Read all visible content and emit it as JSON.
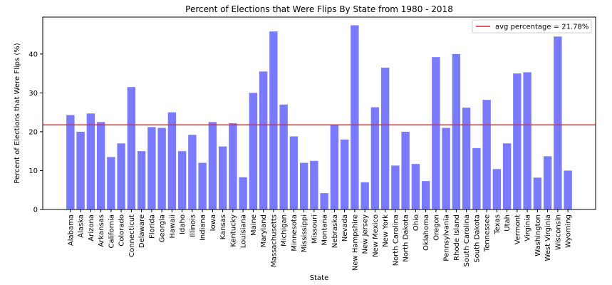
{
  "chart_data": {
    "type": "bar",
    "title": "Percent of Elections that Were Flips By State from 1980 - 2018",
    "xlabel": "State",
    "ylabel": "Percent of Elections that Were Flips (%)",
    "ylim": [
      0,
      49.5
    ],
    "yticks": [
      0,
      10,
      20,
      30,
      40
    ],
    "grid": false,
    "legend_position": "top-right",
    "bar_color": "#7a7aff",
    "reference_line": {
      "label": "avg percentage = 21.78%",
      "value": 21.78,
      "color": "#e8262f"
    },
    "categories": [
      "Alabama",
      "Alaska",
      "Arizona",
      "Arkansas",
      "California",
      "Colorado",
      "Connecticut",
      "Delaware",
      "Florida",
      "Georgia",
      "Hawaii",
      "Idaho",
      "Illinois",
      "Indiana",
      "Iowa",
      "Kansas",
      "Kentucky",
      "Louisiana",
      "Maine",
      "Maryland",
      "Massachusetts",
      "Michigan",
      "Minnesota",
      "Mississippi",
      "Missouri",
      "Montana",
      "Nebraska",
      "Nevada",
      "New Hampshire",
      "New Jersey",
      "New Mexico",
      "New York",
      "North Carolina",
      "North Dakota",
      "Ohio",
      "Oklahoma",
      "Oregon",
      "Pennsylvania",
      "Rhode Island",
      "South Carolina",
      "South Dakota",
      "Tennessee",
      "Texas",
      "Utah",
      "Vermont",
      "Virginia",
      "Washington",
      "West Virginia",
      "Wisconsin",
      "Wyoming"
    ],
    "values": [
      24.3,
      20.0,
      24.7,
      22.5,
      13.5,
      17.0,
      31.5,
      15.0,
      21.2,
      21.0,
      25.0,
      15.0,
      19.2,
      12.0,
      22.5,
      16.2,
      22.2,
      8.3,
      30.0,
      35.5,
      45.8,
      27.0,
      18.8,
      12.0,
      12.5,
      4.2,
      21.7,
      18.0,
      47.4,
      7.0,
      26.3,
      36.5,
      11.3,
      20.0,
      11.7,
      7.3,
      39.2,
      21.0,
      40.0,
      26.2,
      15.8,
      28.2,
      10.4,
      17.0,
      35.0,
      35.3,
      8.2,
      13.7,
      44.5,
      10.0
    ]
  }
}
